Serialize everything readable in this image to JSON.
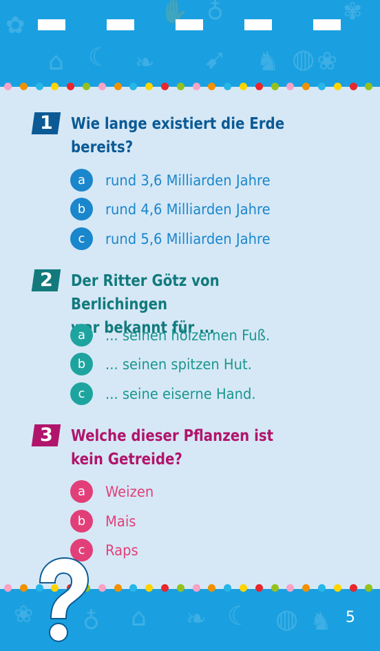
{
  "colors": {
    "band": "#1aa0e0",
    "background": "#d6e8f6",
    "q1_dark": "#0b5a95",
    "q1_light": "#1a86cc",
    "q2_dark": "#127a7c",
    "q2_light": "#1ea49f",
    "q3_dark": "#b0156b",
    "q3_light": "#e23f78",
    "dot_palette": [
      "#e8262d",
      "#f29100",
      "#ffd400",
      "#95c11f",
      "#f8a2c5",
      "#27b6e8",
      "#e8262d"
    ]
  },
  "questions": [
    {
      "number": "1",
      "text_line1": "Wie lange existiert die Erde",
      "text_line2": "bereits?",
      "answers": [
        {
          "letter": "a",
          "text": "rund 3,6 Milliarden Jahre"
        },
        {
          "letter": "b",
          "text": "rund 4,6 Milliarden Jahre"
        },
        {
          "letter": "c",
          "text": "rund 5,6 Milliarden Jahre"
        }
      ]
    },
    {
      "number": "2",
      "text_line1": "Der Ritter Götz von Berlichingen",
      "text_line2": "war bekannt für ...",
      "answers": [
        {
          "letter": "a",
          "text": "... seinen hölzernen Fuß."
        },
        {
          "letter": "b",
          "text": "... seinen spitzen Hut."
        },
        {
          "letter": "c",
          "text": "... seine eiserne Hand."
        }
      ]
    },
    {
      "number": "3",
      "text_line1": "Welche dieser Pflanzen ist",
      "text_line2": "kein Getreide?",
      "answers": [
        {
          "letter": "a",
          "text": "Weizen"
        },
        {
          "letter": "b",
          "text": "Mais"
        },
        {
          "letter": "c",
          "text": "Raps"
        }
      ]
    }
  ],
  "footer": {
    "page_number": "5",
    "question_mark_icon": "question-mark-icon"
  }
}
